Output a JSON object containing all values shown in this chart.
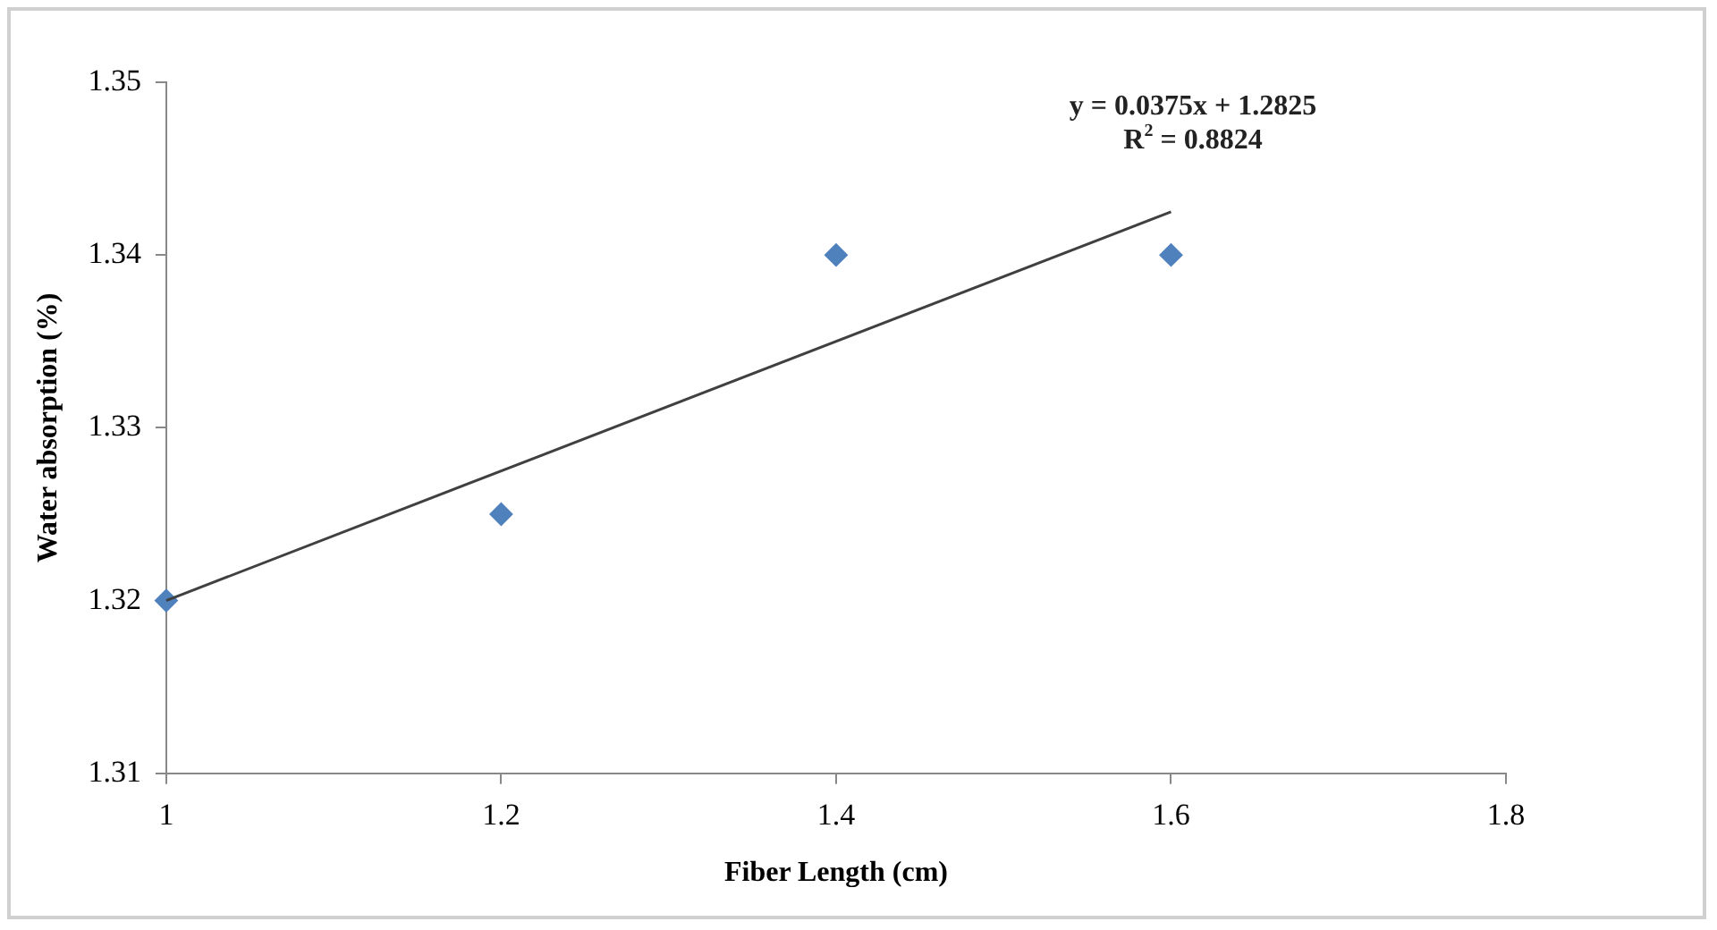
{
  "chart_data": {
    "type": "scatter",
    "xlabel": "Fiber Length (cm)",
    "ylabel": "Water absorption (%)",
    "xlim": [
      1,
      1.8
    ],
    "xticks": [
      1,
      1.2,
      1.4,
      1.6,
      1.8
    ],
    "ylim": [
      1.31,
      1.35
    ],
    "yticks": [
      1.31,
      1.32,
      1.33,
      1.34,
      1.35
    ],
    "grid": false,
    "legend": false,
    "marker": "diamond",
    "annotations": [
      "y = 0.0375x + 1.2825",
      "R$^{2}$ = 0.8824"
    ],
    "series": [
      {
        "color": "#4f81bd",
        "x": [
          1,
          1.2,
          1.4,
          1.6
        ],
        "values": [
          1.32,
          1.325,
          1.34,
          1.34
        ]
      },
      {
        "type": "line",
        "color": "#404040",
        "x": [
          1,
          1.6
        ],
        "values": [
          1.32,
          1.3425
        ],
        "marker": "none"
      }
    ]
  }
}
